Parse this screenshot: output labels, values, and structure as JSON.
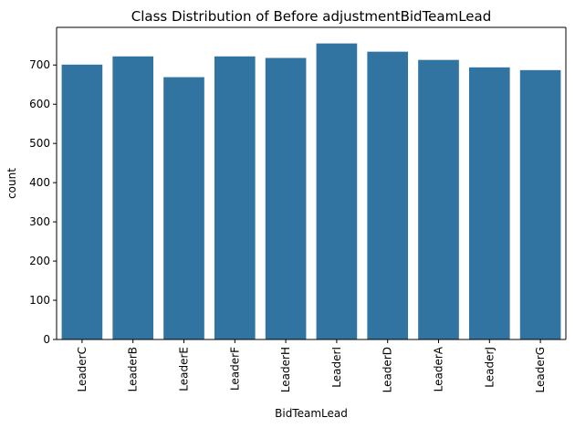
{
  "chart_data": {
    "type": "bar",
    "title": "Class Distribution of Before adjustmentBidTeamLead",
    "xlabel": "BidTeamLead",
    "ylabel": "count",
    "categories": [
      "LeaderC",
      "LeaderB",
      "LeaderE",
      "LeaderF",
      "LeaderH",
      "LeaderI",
      "LeaderD",
      "LeaderA",
      "LeaderJ",
      "LeaderG"
    ],
    "values": [
      701,
      722,
      669,
      722,
      718,
      755,
      734,
      713,
      694,
      687
    ],
    "ylim": [
      0,
      796
    ],
    "yticks": [
      0,
      100,
      200,
      300,
      400,
      500,
      600,
      700
    ],
    "grid": false,
    "legend": "none",
    "colors": {
      "bar": "#3274a1",
      "axis": "#000000"
    }
  }
}
